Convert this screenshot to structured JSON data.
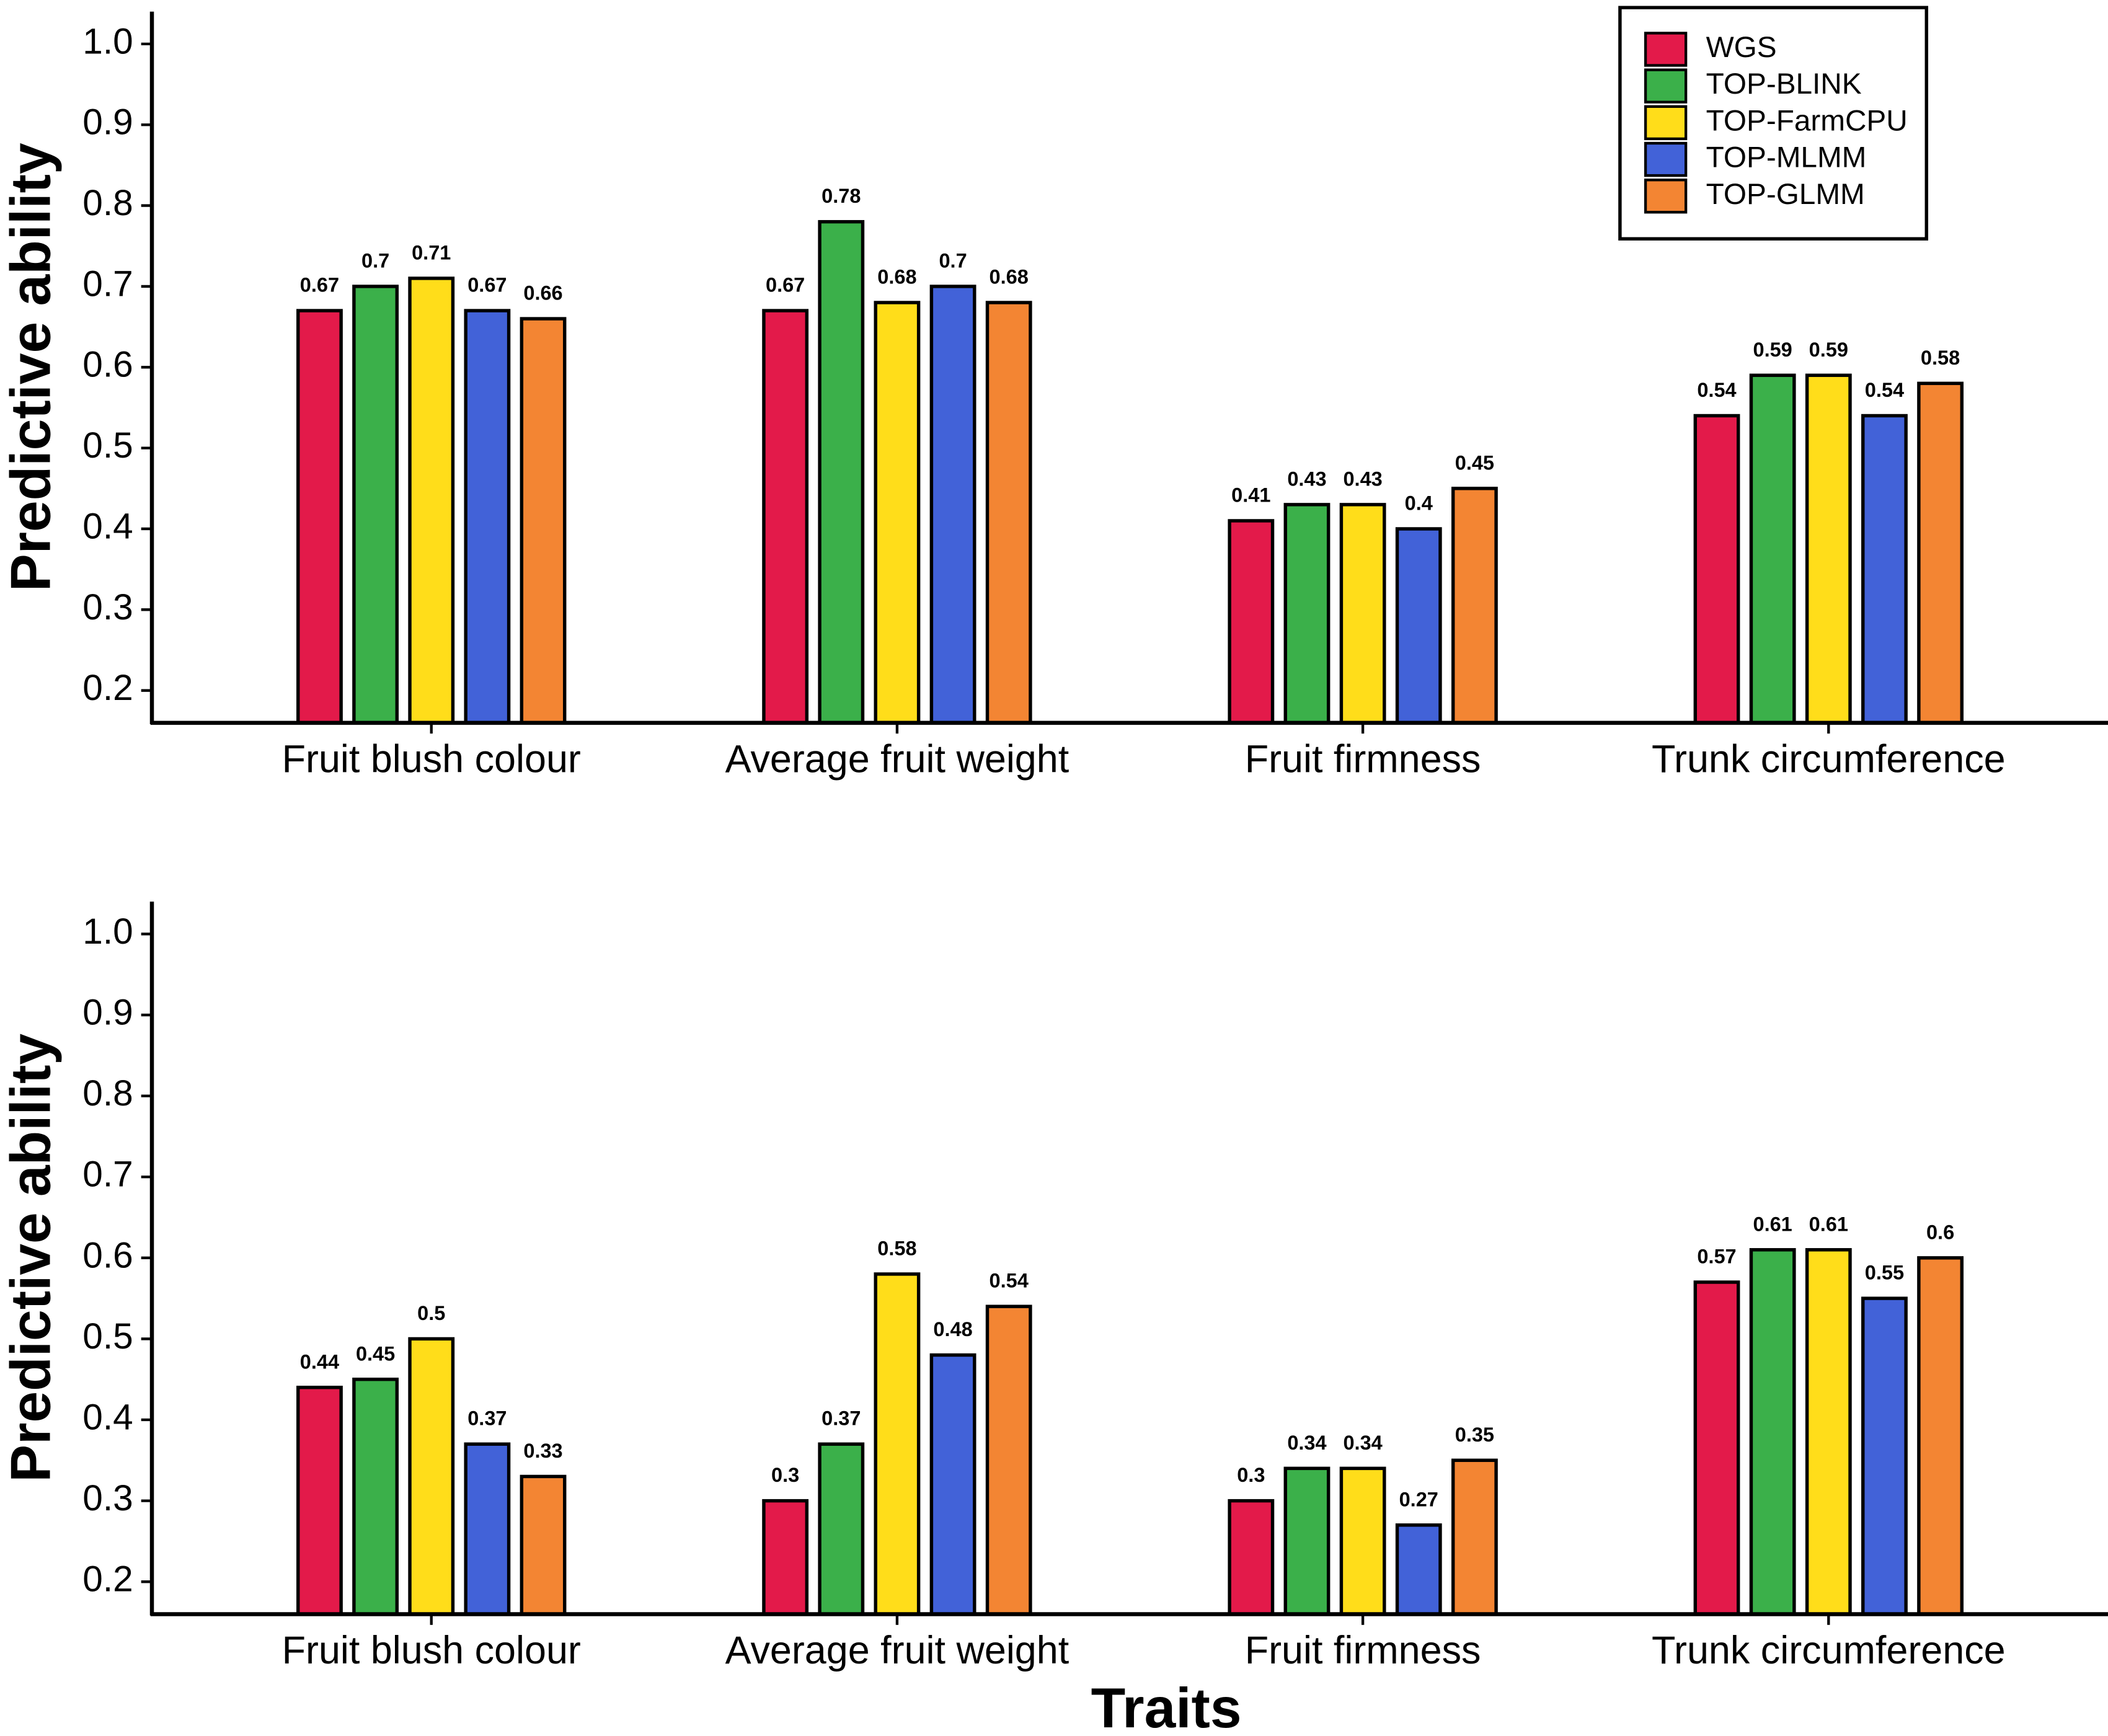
{
  "chart_data": [
    {
      "type": "bar",
      "ylabel": "Predictive ability",
      "categories": [
        "Fruit blush colour",
        "Average fruit weight",
        "Fruit firmness",
        "Trunk circumference"
      ],
      "series": [
        {
          "name": "WGS",
          "color": "#e31a4a",
          "values": [
            0.67,
            0.67,
            0.41,
            0.54
          ]
        },
        {
          "name": "TOP-BLINK",
          "color": "#3bb04a",
          "values": [
            0.7,
            0.78,
            0.43,
            0.59
          ]
        },
        {
          "name": "TOP-FarmCPU",
          "color": "#ffdd1a",
          "values": [
            0.71,
            0.68,
            0.43,
            0.59
          ]
        },
        {
          "name": "TOP-MLMM",
          "color": "#4262d8",
          "values": [
            0.67,
            0.7,
            0.4,
            0.54
          ]
        },
        {
          "name": "TOP-GLMM",
          "color": "#f38533",
          "values": [
            0.66,
            0.68,
            0.45,
            0.58
          ]
        }
      ],
      "ylim": [
        0.16,
        1.04
      ],
      "yticks": [
        0.2,
        0.3,
        0.4,
        0.5,
        0.6,
        0.7,
        0.8,
        0.9,
        {
          "value": 1,
          "label": "1.0"
        }
      ],
      "legend": "top-right"
    },
    {
      "type": "bar",
      "ylabel": "Predictive ability",
      "xlabel": "Traits",
      "categories": [
        "Fruit blush colour",
        "Average fruit weight",
        "Fruit firmness",
        "Trunk circumference"
      ],
      "series": [
        {
          "color": "#e31a4a",
          "values": [
            0.44,
            0.3,
            0.3,
            0.57
          ]
        },
        {
          "color": "#3bb04a",
          "values": [
            0.45,
            0.37,
            0.34,
            0.61
          ]
        },
        {
          "color": "#ffdd1a",
          "values": [
            0.5,
            0.58,
            0.34,
            0.61
          ]
        },
        {
          "color": "#4262d8",
          "values": [
            0.37,
            0.48,
            0.27,
            0.55
          ]
        },
        {
          "color": "#f38533",
          "values": [
            0.33,
            0.54,
            0.35,
            0.6
          ]
        }
      ],
      "ylim": [
        0.16,
        1.04
      ],
      "yticks": [
        0.2,
        0.3,
        0.4,
        0.5,
        0.6,
        0.7,
        0.8,
        0.9,
        {
          "value": 1,
          "label": "1.0"
        }
      ]
    }
  ]
}
